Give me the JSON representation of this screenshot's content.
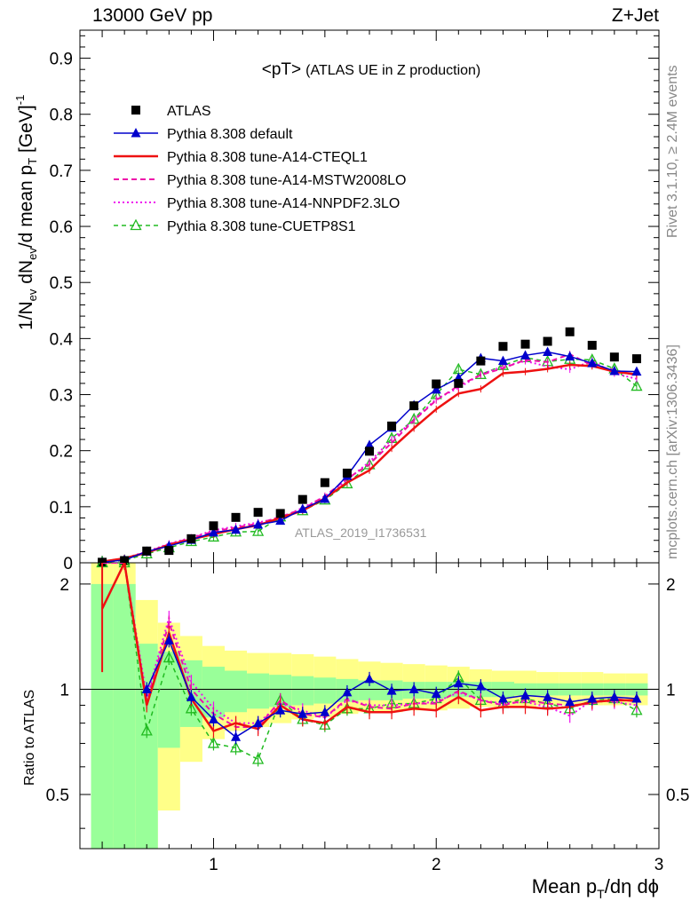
{
  "header": {
    "energy": "13000 GeV pp",
    "process": "Z+Jet"
  },
  "side_text": {
    "rivet": "Rivet 3.1.10, ≥ 2.4M events",
    "mcplots": "mcplots.cern.ch [arXiv:1306.3436]"
  },
  "watermark": "ATLAS_2019_I1736531",
  "colors": {
    "atlas": "#000000",
    "default": "#0000cc",
    "cteql1": "#ee1111",
    "mstw": "#ee11aa",
    "nnpdf": "#ee11ee",
    "cuetp8s1": "#22bb22",
    "band_inner": "#99ff99",
    "band_outer": "#ffff88"
  },
  "chart_data": {
    "type": "line",
    "title_main": "<pT>",
    "title_sub": "(ATLAS UE in Z production)",
    "ylabel": "1/N_ev dN_ev/d mean p_T [GeV]^-1",
    "ratio_ylabel": "Ratio to ATLAS",
    "xlabel": "Mean p_T/dη dϕ",
    "xlim": [
      0.4,
      3.0
    ],
    "ylim": [
      0,
      0.95
    ],
    "ratio_ylim": [
      0.35,
      2.3
    ],
    "x_ticks": [
      "1",
      "2",
      "3"
    ],
    "y_ticks": [
      "0",
      "0.1",
      "0.2",
      "0.3",
      "0.4",
      "0.5",
      "0.6",
      "0.7",
      "0.8",
      "0.9"
    ],
    "ratio_y_ticks": [
      "0.5",
      "1",
      "2"
    ],
    "x": [
      0.5,
      0.6,
      0.7,
      0.8,
      0.9,
      1.0,
      1.1,
      1.2,
      1.3,
      1.4,
      1.5,
      1.6,
      1.7,
      1.8,
      1.9,
      2.0,
      2.1,
      2.2,
      2.3,
      2.4,
      2.5,
      2.6,
      2.7,
      2.8,
      2.9
    ],
    "series": [
      {
        "name": "ATLAS",
        "key": "atlas",
        "values": [
          0.001,
          0.004,
          0.021,
          0.022,
          0.043,
          0.066,
          0.081,
          0.09,
          0.088,
          0.113,
          0.143,
          0.16,
          0.199,
          0.244,
          0.28,
          0.319,
          0.32,
          0.36,
          0.386,
          0.39,
          0.395,
          0.412,
          0.388,
          0.367,
          0.364
        ]
      },
      {
        "name": "Pythia 8.308 default",
        "key": "default",
        "values": [
          0.001,
          0.005,
          0.02,
          0.03,
          0.041,
          0.054,
          0.059,
          0.068,
          0.075,
          0.096,
          0.114,
          0.155,
          0.21,
          0.241,
          0.281,
          0.309,
          0.33,
          0.365,
          0.36,
          0.37,
          0.376,
          0.368,
          0.356,
          0.342,
          0.341
        ]
      },
      {
        "name": "Pythia 8.308 tune-A14-CTEQL1",
        "key": "cteql1",
        "values": [
          0.002,
          0.008,
          0.018,
          0.032,
          0.042,
          0.051,
          0.06,
          0.067,
          0.08,
          0.093,
          0.115,
          0.143,
          0.165,
          0.204,
          0.24,
          0.274,
          0.302,
          0.31,
          0.338,
          0.341,
          0.346,
          0.353,
          0.351,
          0.341,
          0.336
        ]
      },
      {
        "name": "Pythia 8.308 tune-A14-MSTW2008LO",
        "key": "mstw",
        "values": [
          0.002,
          0.008,
          0.019,
          0.033,
          0.044,
          0.056,
          0.063,
          0.07,
          0.082,
          0.096,
          0.119,
          0.15,
          0.176,
          0.214,
          0.254,
          0.29,
          0.316,
          0.335,
          0.347,
          0.362,
          0.358,
          0.372,
          0.352,
          0.344,
          0.334
        ]
      },
      {
        "name": "Pythia 8.308 tune-A14-NNPDF2.3LO",
        "key": "nnpdf",
        "values": [
          0.002,
          0.008,
          0.02,
          0.034,
          0.045,
          0.058,
          0.065,
          0.072,
          0.08,
          0.098,
          0.118,
          0.148,
          0.18,
          0.22,
          0.255,
          0.292,
          0.312,
          0.336,
          0.35,
          0.36,
          0.35,
          0.345,
          0.36,
          0.338,
          0.328
        ]
      },
      {
        "name": "Pythia 8.308 tune-CUETP8S1",
        "key": "cuetp8s1",
        "values": [
          0.001,
          0.004,
          0.016,
          0.027,
          0.038,
          0.046,
          0.055,
          0.056,
          0.082,
          0.093,
          0.112,
          0.141,
          0.175,
          0.222,
          0.256,
          0.3,
          0.345,
          0.336,
          0.352,
          0.366,
          0.359,
          0.363,
          0.362,
          0.346,
          0.315
        ]
      }
    ],
    "ratio_series": [
      {
        "key": "default",
        "values": [
          null,
          null,
          1.0,
          1.38,
          0.95,
          0.82,
          0.73,
          0.8,
          0.87,
          0.85,
          0.86,
          0.98,
          1.07,
          0.99,
          1.0,
          0.97,
          1.04,
          1.02,
          0.94,
          0.96,
          0.95,
          0.92,
          0.94,
          0.95,
          0.94
        ]
      },
      {
        "key": "cteql1",
        "values": [
          1.7,
          2.3,
          0.9,
          1.45,
          0.94,
          0.76,
          0.8,
          0.77,
          0.9,
          0.82,
          0.8,
          0.89,
          0.86,
          0.86,
          0.88,
          0.87,
          0.95,
          0.87,
          0.89,
          0.89,
          0.88,
          0.89,
          0.92,
          0.93,
          0.93
        ]
      },
      {
        "key": "mstw",
        "values": [
          2.3,
          2.3,
          0.92,
          1.55,
          1.0,
          0.85,
          0.78,
          0.78,
          0.93,
          0.85,
          0.83,
          0.94,
          0.89,
          0.88,
          0.91,
          0.91,
          0.99,
          0.93,
          0.9,
          0.93,
          0.91,
          0.9,
          0.91,
          0.94,
          0.92
        ]
      },
      {
        "key": "nnpdf",
        "values": [
          2.3,
          2.3,
          0.95,
          1.6,
          1.05,
          0.88,
          0.8,
          0.8,
          0.91,
          0.87,
          0.83,
          0.93,
          0.9,
          0.9,
          0.91,
          0.92,
          0.98,
          0.93,
          0.91,
          0.92,
          0.89,
          0.84,
          0.93,
          0.92,
          0.9
        ]
      },
      {
        "key": "cuetp8s1",
        "values": [
          2.3,
          2.3,
          0.76,
          1.23,
          0.88,
          0.7,
          0.68,
          0.63,
          0.93,
          0.82,
          0.79,
          0.88,
          0.88,
          0.91,
          0.91,
          0.94,
          1.08,
          0.93,
          0.91,
          0.94,
          0.91,
          0.88,
          0.93,
          0.94,
          0.87
        ]
      }
    ],
    "ratio_band": {
      "x_edges": [
        0.45,
        0.55,
        0.65,
        0.75,
        0.85,
        0.95,
        1.05,
        1.15,
        1.25,
        1.35,
        1.45,
        1.55,
        1.65,
        1.75,
        1.85,
        1.95,
        2.05,
        2.15,
        2.25,
        2.35,
        2.45,
        2.55,
        2.65,
        2.75,
        2.85,
        2.95
      ],
      "inner_lo": [
        0.35,
        0.35,
        0.35,
        0.68,
        0.78,
        0.83,
        0.86,
        0.88,
        0.89,
        0.9,
        0.91,
        0.92,
        0.93,
        0.93,
        0.94,
        0.94,
        0.95,
        0.95,
        0.95,
        0.96,
        0.96,
        0.96,
        0.96,
        0.96,
        0.96
      ],
      "inner_hi": [
        2.0,
        2.0,
        1.35,
        1.28,
        1.21,
        1.16,
        1.13,
        1.11,
        1.1,
        1.09,
        1.08,
        1.07,
        1.06,
        1.06,
        1.05,
        1.05,
        1.05,
        1.05,
        1.05,
        1.04,
        1.04,
        1.04,
        1.04,
        1.04,
        1.04
      ],
      "outer_lo": [
        0.35,
        0.35,
        0.35,
        0.45,
        0.62,
        0.72,
        0.76,
        0.78,
        0.8,
        0.82,
        0.83,
        0.85,
        0.86,
        0.86,
        0.87,
        0.87,
        0.88,
        0.89,
        0.89,
        0.89,
        0.9,
        0.9,
        0.9,
        0.9,
        0.9
      ],
      "outer_hi": [
        2.3,
        2.3,
        1.8,
        1.55,
        1.42,
        1.33,
        1.29,
        1.27,
        1.27,
        1.26,
        1.24,
        1.22,
        1.2,
        1.19,
        1.18,
        1.17,
        1.16,
        1.14,
        1.13,
        1.13,
        1.12,
        1.12,
        1.12,
        1.11,
        1.11
      ]
    }
  }
}
